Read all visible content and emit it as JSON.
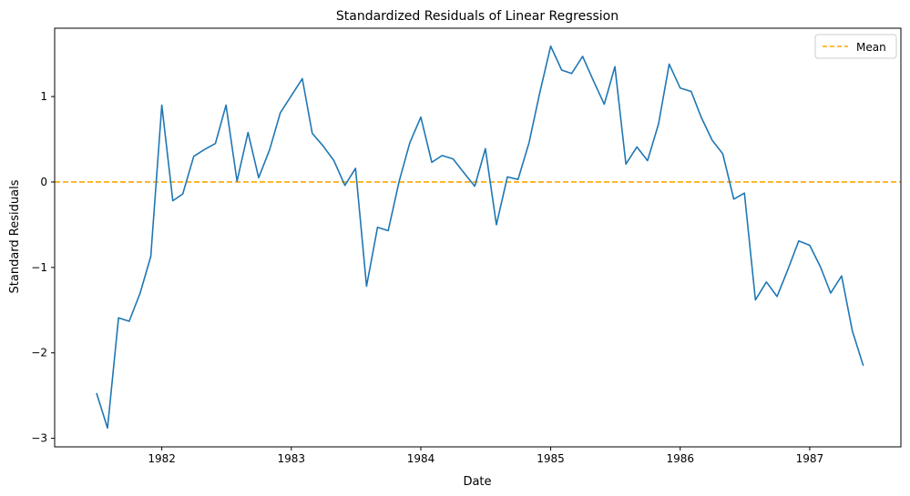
{
  "chart_data": {
    "type": "line",
    "title": "Standardized Residuals of Linear Regression",
    "xlabel": "Date",
    "ylabel": "Standard Residuals",
    "xlim": [
      "1981-03-05",
      "1987-09-15"
    ],
    "ylim": [
      -3.1,
      1.8
    ],
    "x_ticks": [
      "1982",
      "1983",
      "1984",
      "1985",
      "1986",
      "1987"
    ],
    "y_ticks": [
      1,
      0,
      -1,
      -2,
      -3
    ],
    "y_tick_labels": [
      "1",
      "0",
      "−1",
      "−2",
      "−3"
    ],
    "grid": false,
    "legend_position": "top-right",
    "series": [
      {
        "color": "#1f77b4",
        "x": [
          "1981-07-01",
          "1981-08-01",
          "1981-09-01",
          "1981-10-01",
          "1981-11-01",
          "1981-12-01",
          "1982-01-01",
          "1982-02-01",
          "1982-03-01",
          "1982-04-01",
          "1982-05-01",
          "1982-06-01",
          "1982-07-01",
          "1982-08-01",
          "1982-09-01",
          "1982-10-01",
          "1982-11-01",
          "1982-12-01",
          "1983-01-01",
          "1983-02-01",
          "1983-03-01",
          "1983-04-01",
          "1983-05-01",
          "1983-06-01",
          "1983-07-01",
          "1983-08-01",
          "1983-09-01",
          "1983-10-01",
          "1983-11-01",
          "1983-12-01",
          "1984-01-01",
          "1984-02-01",
          "1984-03-01",
          "1984-04-01",
          "1984-05-01",
          "1984-06-01",
          "1984-07-01",
          "1984-08-01",
          "1984-09-01",
          "1984-10-01",
          "1984-11-01",
          "1984-12-01",
          "1985-01-01",
          "1985-02-01",
          "1985-03-01",
          "1985-04-01",
          "1985-05-01",
          "1985-06-01",
          "1985-07-01",
          "1985-08-01",
          "1985-09-01",
          "1985-10-01",
          "1985-11-01",
          "1985-12-01",
          "1986-01-01",
          "1986-02-01",
          "1986-03-01",
          "1986-04-01",
          "1986-05-01",
          "1986-06-01",
          "1986-07-01",
          "1986-08-01",
          "1986-09-01",
          "1986-10-01",
          "1986-11-01",
          "1986-12-01",
          "1987-01-01",
          "1987-02-01",
          "1987-03-01",
          "1987-04-01",
          "1987-05-01",
          "1987-06-01"
        ],
        "values": [
          -2.47,
          -2.88,
          -1.59,
          -1.63,
          -1.3,
          -0.87,
          0.9,
          -0.22,
          -0.14,
          0.3,
          0.38,
          0.45,
          0.9,
          0.01,
          0.58,
          0.05,
          0.38,
          0.81,
          1.01,
          1.21,
          0.57,
          0.42,
          0.25,
          -0.04,
          0.16,
          -1.22,
          -0.53,
          -0.57,
          0.01,
          0.46,
          0.76,
          0.23,
          0.31,
          0.27,
          0.11,
          -0.05,
          0.39,
          -0.5,
          0.06,
          0.03,
          0.46,
          1.04,
          1.59,
          1.31,
          1.27,
          1.47,
          1.19,
          0.91,
          1.35,
          0.21,
          0.41,
          0.25,
          0.68,
          1.38,
          1.1,
          1.06,
          0.76,
          0.49,
          0.33,
          -0.2,
          -0.13,
          -1.38,
          -1.17,
          -1.34,
          -1.02,
          -0.69,
          -0.74,
          -1.0,
          -1.3,
          -1.1,
          -1.74,
          -2.15
        ]
      }
    ],
    "reference_lines": [
      {
        "name": "Mean",
        "y": 0,
        "color": "#ffa500",
        "style": "dashed"
      }
    ]
  }
}
